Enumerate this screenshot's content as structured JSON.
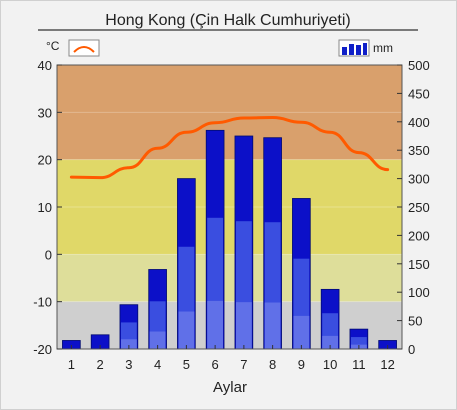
{
  "chart_data": {
    "type": "bar",
    "title": "Hong Kong (Çin Halk Cumhuriyeti)",
    "xlabel": "Aylar",
    "categories": [
      "1",
      "2",
      "3",
      "4",
      "5",
      "6",
      "7",
      "8",
      "9",
      "10",
      "11",
      "12"
    ],
    "temp_unit": "°C",
    "precip_unit": "mm",
    "temp_axis": {
      "range": [
        -20,
        40
      ],
      "ticks": [
        "40",
        "30",
        "20",
        "10",
        "0",
        "-10",
        "-20"
      ]
    },
    "precip_axis": {
      "range": [
        0,
        500
      ],
      "ticks": [
        "500",
        "450",
        "400",
        "350",
        "300",
        "250",
        "200",
        "150",
        "100",
        "50",
        "0"
      ]
    },
    "series": [
      {
        "name": "°C",
        "type": "line",
        "values": [
          16.3,
          16.2,
          18.3,
          22.4,
          25.8,
          27.8,
          28.8,
          28.9,
          27.9,
          25.8,
          21.5,
          17.9
        ]
      },
      {
        "name": "mm",
        "type": "bar",
        "values": [
          15,
          25,
          78,
          140,
          300,
          385,
          375,
          372,
          265,
          105,
          35,
          15
        ]
      }
    ],
    "colors": {
      "background_hot": "#d9a06c",
      "background_warm": "#e0d868",
      "background_mild": "#dede9a",
      "background_cool": "#cfcfcf",
      "temperature_line": "#ff5a00",
      "bar_dark": "#0c10c8",
      "bar_mid": "#3a4ee0",
      "bar_light": "#6070e8"
    }
  }
}
